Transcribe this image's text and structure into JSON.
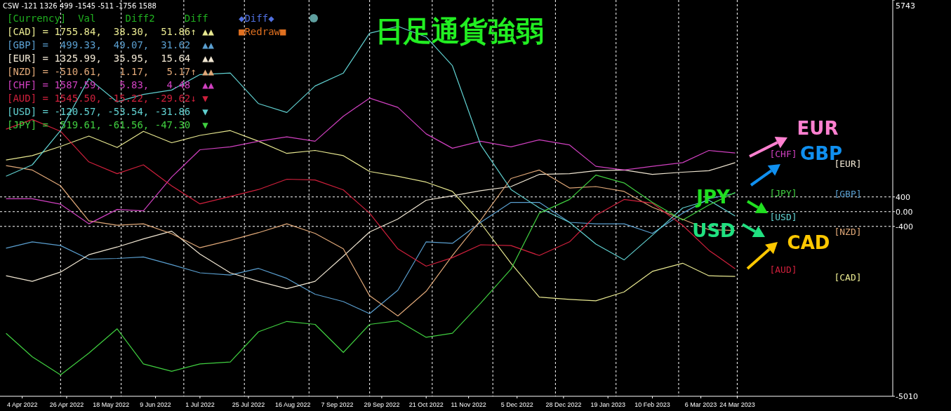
{
  "chart_data": {
    "type": "line",
    "title": "日足通貨強弱",
    "x": [
      "2022-03-27",
      "2022-04-09",
      "2022-04-23",
      "2022-05-07",
      "2022-05-21",
      "2022-06-03",
      "2022-06-17",
      "2022-07-01",
      "2022-07-16",
      "2022-07-30",
      "2022-08-13",
      "2022-08-27",
      "2022-09-10",
      "2022-09-23",
      "2022-10-07",
      "2022-10-21",
      "2022-11-03",
      "2022-11-17",
      "2022-12-02",
      "2022-12-16",
      "2022-12-31",
      "2023-01-13",
      "2023-01-27",
      "2023-02-10",
      "2023-02-25",
      "2023-03-10",
      "2023-03-23"
    ],
    "xlim": [
      "2022-03-24",
      "2023-06-09"
    ],
    "ylim": [
      -5010,
      5743
    ],
    "xticks": [
      {
        "value": "2022-04-04",
        "label": "4 Apr 2022"
      },
      {
        "value": "2022-04-26",
        "label": "26 Apr 2022"
      },
      {
        "value": "2022-05-18",
        "label": "18 May 2022"
      },
      {
        "value": "2022-06-09",
        "label": "9 Jun 2022"
      },
      {
        "value": "2022-07-01",
        "label": "1 Jul 2022"
      },
      {
        "value": "2022-07-25",
        "label": "25 Jul 2022"
      },
      {
        "value": "2022-08-16",
        "label": "16 Aug 2022"
      },
      {
        "value": "2022-09-07",
        "label": "7 Sep 2022"
      },
      {
        "value": "2022-09-29",
        "label": "29 Sep 2022"
      },
      {
        "value": "2022-10-21",
        "label": "21 Oct 2022"
      },
      {
        "value": "2022-11-11",
        "label": "11 Nov 2022"
      },
      {
        "value": "2022-12-05",
        "label": "5 Dec 2022"
      },
      {
        "value": "2022-12-28",
        "label": "28 Dec 2022"
      },
      {
        "value": "2023-01-19",
        "label": "19 Jan 2023"
      },
      {
        "value": "2023-02-10",
        "label": "10 Feb 2023"
      },
      {
        "value": "2023-03-06",
        "label": "6 Mar 2023"
      },
      {
        "value": "2023-03-24",
        "label": "24 Mar 2023"
      }
    ],
    "yticks": [
      5743,
      400,
      {
        "value": 0,
        "label": "0.00"
      },
      -400,
      -5010
    ],
    "series": [
      {
        "name": "[CAD]",
        "color": "#e8e890",
        "values": [
          1400,
          1520,
          1770,
          2050,
          1740,
          2180,
          1870,
          2070,
          2200,
          1910,
          1580,
          1660,
          1520,
          1090,
          960,
          800,
          550,
          -310,
          -1400,
          -2320,
          -2380,
          -2420,
          -2180,
          -1620,
          -1400,
          -1740,
          -1760
        ]
      },
      {
        "name": "[GBP]",
        "color": "#5a9fd0",
        "values": [
          -990,
          -820,
          -920,
          -1290,
          -1270,
          -1230,
          -1440,
          -1660,
          -1720,
          -1540,
          -1810,
          -2240,
          -2440,
          -2770,
          -2130,
          -820,
          -860,
          -290,
          250,
          250,
          -290,
          -330,
          -330,
          -590,
          -40,
          350,
          500
        ]
      },
      {
        "name": "[EUR]",
        "color": "#f0e6d2",
        "values": [
          -1740,
          -1890,
          -1640,
          -1170,
          -960,
          -740,
          -530,
          -1150,
          -1660,
          -1890,
          -2090,
          -1890,
          -1210,
          -550,
          -200,
          310,
          430,
          570,
          680,
          1010,
          1030,
          1110,
          1130,
          1010,
          1070,
          1110,
          1330
        ]
      },
      {
        "name": "[NZD]",
        "color": "#e0a878",
        "values": [
          1250,
          1130,
          700,
          -250,
          -370,
          -330,
          -600,
          -980,
          -780,
          -570,
          -330,
          -590,
          -1010,
          -2280,
          -2830,
          -2160,
          -1190,
          -230,
          900,
          1130,
          640,
          680,
          550,
          120,
          -210,
          -490,
          -510
        ]
      },
      {
        "name": "[CHF]",
        "color": "#d040c0",
        "values": [
          350,
          350,
          200,
          -330,
          60,
          20,
          940,
          1680,
          1760,
          1910,
          2030,
          1910,
          2590,
          3080,
          2830,
          2110,
          1720,
          1910,
          1760,
          1950,
          1810,
          1230,
          1130,
          1230,
          1330,
          1660,
          1590
        ]
      },
      {
        "name": "[AUD]",
        "color": "#d0203c",
        "values": [
          2240,
          2500,
          2180,
          1350,
          1030,
          1270,
          700,
          210,
          410,
          600,
          880,
          860,
          590,
          -40,
          -1010,
          -1480,
          -1250,
          -900,
          -920,
          -1190,
          -820,
          -100,
          330,
          230,
          -370,
          -1050,
          -1550
        ]
      },
      {
        "name": "[USD]",
        "color": "#60d0d0",
        "values": [
          960,
          1270,
          2200,
          3610,
          2980,
          3180,
          3300,
          3720,
          3760,
          2930,
          2690,
          3410,
          3760,
          4840,
          5030,
          4740,
          3960,
          1810,
          600,
          100,
          -290,
          -880,
          -1310,
          -640,
          100,
          310,
          -120
        ]
      },
      {
        "name": "[JPY]",
        "color": "#40d040",
        "values": [
          -3300,
          -3940,
          -4430,
          -3840,
          -3180,
          -4130,
          -4330,
          -4130,
          -4080,
          -3260,
          -2980,
          -3060,
          -3820,
          -3060,
          -2960,
          -3410,
          -3300,
          -2480,
          -1560,
          -40,
          330,
          990,
          780,
          250,
          -230,
          180,
          520
        ]
      }
    ],
    "ref_lines": [
      {
        "axis": "y",
        "value": 400,
        "color": "#ffffff",
        "line_style": "dashed"
      },
      {
        "axis": "y",
        "value": 0,
        "color": "#ffffff",
        "line_style": "dashed"
      },
      {
        "axis": "y",
        "value": -400,
        "color": "#ffffff",
        "line_style": "dashed"
      },
      {
        "axis": "x",
        "value": "2022-04-23",
        "color": "#ffffff",
        "line_style": "dashed"
      },
      {
        "axis": "x",
        "value": "2022-05-23",
        "color": "#ffffff",
        "line_style": "dashed"
      },
      {
        "axis": "x",
        "value": "2022-06-23",
        "color": "#ffffff",
        "line_style": "dashed"
      },
      {
        "axis": "x",
        "value": "2022-07-23",
        "color": "#ffffff",
        "line_style": "dashed"
      },
      {
        "axis": "x",
        "value": "2022-08-24",
        "color": "#ffffff",
        "line_style": "dashed"
      },
      {
        "axis": "x",
        "value": "2022-09-23",
        "color": "#ffffff",
        "line_style": "dashed"
      },
      {
        "axis": "x",
        "value": "2022-10-24",
        "color": "#ffffff",
        "line_style": "dashed"
      },
      {
        "axis": "x",
        "value": "2022-11-23",
        "color": "#ffffff",
        "line_style": "dashed"
      },
      {
        "axis": "x",
        "value": "2022-12-24",
        "color": "#ffffff",
        "line_style": "dashed"
      },
      {
        "axis": "x",
        "value": "2023-01-23",
        "color": "#ffffff",
        "line_style": "dashed"
      },
      {
        "axis": "x",
        "value": "2023-02-23",
        "color": "#ffffff",
        "line_style": "dashed"
      },
      {
        "axis": "x",
        "value": "2023-03-24",
        "color": "#ffffff",
        "line_style": "dashed"
      }
    ],
    "annotations": [
      "CSW -121 1326 499 -1545 -511 -1756 1588",
      "[Currency]  Val     Diff2     Diff",
      "[CAD] = 1755.84,  38.30,  51.86↑ ▲▲",
      "[GBP] =  499.33,  49.07,  31.62  ▲▲",
      "[EUR] = 1325.99,  35.95,  15.64  ▲▲",
      "[NZD] = -510.61,   1.17,   5.17↑ ▲▲",
      "[CHF] = 1587.59,   5.83,   4.48  ▲▲",
      "[AUD] = 1545.50, -15.22, -29.62↓ ▼",
      "[USD] = -120.57, -53.54, -31.86  ▼",
      "[JPY] =  519.61, -61.56, -47.30  ▼",
      "◆Diff◆",
      "■Redraw■",
      "EUR",
      "GBP",
      "JPY",
      "USD",
      "CAD"
    ]
  }
}
